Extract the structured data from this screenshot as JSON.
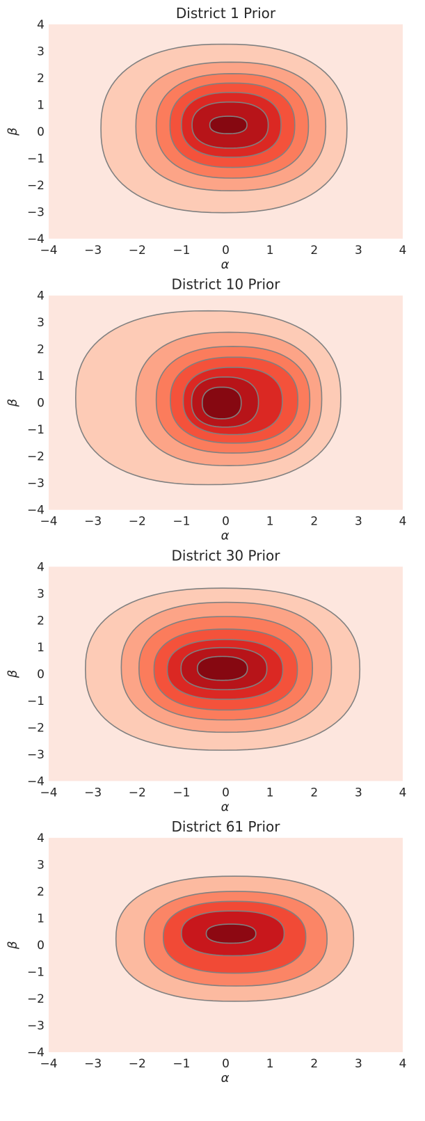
{
  "chart_data": [
    {
      "type": "contour",
      "title": "District 1 Prior",
      "xlabel": "α",
      "ylabel": "β",
      "xlim": [
        -4,
        4
      ],
      "ylim": [
        -4,
        4
      ],
      "grid": false,
      "xticks": [
        -4,
        -3,
        -2,
        -1,
        0,
        1,
        2,
        3,
        4
      ],
      "yticks": [
        -4,
        -3,
        -2,
        -1,
        0,
        1,
        2,
        3,
        4
      ],
      "xtick_labels": [
        "−4",
        "−3",
        "−2",
        "−1",
        "0",
        "1",
        "2",
        "3",
        "4"
      ],
      "ytick_labels": [
        "−4",
        "−3",
        "−2",
        "−1",
        "0",
        "1",
        "2",
        "3",
        "4"
      ],
      "fill_colors": [
        "#fde6de",
        "#fdcbb6",
        "#fca487",
        "#fb7c5c",
        "#f4523b",
        "#db2823",
        "#b71419",
        "#860811"
      ],
      "line_color": "#808080",
      "contours": [
        {
          "level": 1,
          "x_extent": [
            -2.82,
            2.74
          ],
          "y_extent": [
            -3.03,
            3.26
          ]
        },
        {
          "level": 2,
          "x_extent": [
            -2.03,
            2.26
          ],
          "y_extent": [
            -2.21,
            2.59
          ]
        },
        {
          "level": 3,
          "x_extent": [
            -1.57,
            1.87
          ],
          "y_extent": [
            -1.74,
            2.16
          ]
        },
        {
          "level": 4,
          "x_extent": [
            -1.26,
            1.56
          ],
          "y_extent": [
            -1.34,
            1.81
          ]
        },
        {
          "level": 5,
          "x_extent": [
            -1.0,
            1.25
          ],
          "y_extent": [
            -0.96,
            1.46
          ]
        },
        {
          "level": 6,
          "x_extent": [
            -0.76,
            0.96
          ],
          "y_extent": [
            -0.62,
            1.1
          ]
        },
        {
          "level": 7,
          "x_extent": [
            -0.36,
            0.48
          ],
          "y_extent": [
            -0.08,
            0.57
          ]
        }
      ]
    },
    {
      "type": "contour",
      "title": "District 10 Prior",
      "xlabel": "α",
      "ylabel": "β",
      "xlim": [
        -4,
        4
      ],
      "ylim": [
        -4,
        4
      ],
      "grid": false,
      "xticks": [
        -4,
        -3,
        -2,
        -1,
        0,
        1,
        2,
        3,
        4
      ],
      "yticks": [
        -4,
        -3,
        -2,
        -1,
        0,
        1,
        2,
        3,
        4
      ],
      "xtick_labels": [
        "−4",
        "−3",
        "−2",
        "−1",
        "0",
        "1",
        "2",
        "3",
        "4"
      ],
      "ytick_labels": [
        "−4",
        "−3",
        "−2",
        "−1",
        "0",
        "1",
        "2",
        "3",
        "4"
      ],
      "fill_colors": [
        "#fde6de",
        "#fdcbb6",
        "#fca487",
        "#fb7c5c",
        "#f4523b",
        "#db2823",
        "#b71419",
        "#860811"
      ],
      "line_color": "#808080",
      "contours": [
        {
          "level": 1,
          "x_extent": [
            -3.39,
            2.6
          ],
          "y_extent": [
            -3.06,
            3.43
          ]
        },
        {
          "level": 2,
          "x_extent": [
            -2.03,
            2.17
          ],
          "y_extent": [
            -2.35,
            2.63
          ]
        },
        {
          "level": 3,
          "x_extent": [
            -1.57,
            1.9
          ],
          "y_extent": [
            -1.88,
            2.1
          ]
        },
        {
          "level": 4,
          "x_extent": [
            -1.25,
            1.63
          ],
          "y_extent": [
            -1.51,
            1.7
          ]
        },
        {
          "level": 5,
          "x_extent": [
            -0.96,
            1.28
          ],
          "y_extent": [
            -1.19,
            1.32
          ]
        },
        {
          "level": 6,
          "x_extent": [
            -0.77,
            0.74
          ],
          "y_extent": [
            -0.91,
            0.96
          ]
        },
        {
          "level": 7,
          "x_extent": [
            -0.53,
            0.35
          ],
          "y_extent": [
            -0.6,
            0.58
          ]
        }
      ]
    },
    {
      "type": "contour",
      "title": "District 30 Prior",
      "xlabel": "α",
      "ylabel": "β",
      "xlim": [
        -4,
        4
      ],
      "ylim": [
        -4,
        4
      ],
      "grid": false,
      "xticks": [
        -4,
        -3,
        -2,
        -1,
        0,
        1,
        2,
        3,
        4
      ],
      "yticks": [
        -4,
        -3,
        -2,
        -1,
        0,
        1,
        2,
        3,
        4
      ],
      "xtick_labels": [
        "−4",
        "−3",
        "−2",
        "−1",
        "0",
        "1",
        "2",
        "3",
        "4"
      ],
      "ytick_labels": [
        "−4",
        "−3",
        "−2",
        "−1",
        "0",
        "1",
        "2",
        "3",
        "4"
      ],
      "fill_colors": [
        "#fde6de",
        "#fdcbb6",
        "#fca487",
        "#fb7c5c",
        "#f4523b",
        "#db2823",
        "#b71419",
        "#860811"
      ],
      "line_color": "#808080",
      "contours": [
        {
          "level": 1,
          "x_extent": [
            -3.17,
            3.03
          ],
          "y_extent": [
            -2.85,
            3.2
          ]
        },
        {
          "level": 2,
          "x_extent": [
            -2.36,
            2.39
          ],
          "y_extent": [
            -2.18,
            2.67
          ]
        },
        {
          "level": 3,
          "x_extent": [
            -1.96,
            1.96
          ],
          "y_extent": [
            -1.72,
            2.14
          ]
        },
        {
          "level": 4,
          "x_extent": [
            -1.62,
            1.62
          ],
          "y_extent": [
            -1.35,
            1.67
          ]
        },
        {
          "level": 5,
          "x_extent": [
            -1.32,
            1.29
          ],
          "y_extent": [
            -0.95,
            1.28
          ]
        },
        {
          "level": 6,
          "x_extent": [
            -1.01,
            0.93
          ],
          "y_extent": [
            -0.59,
            0.98
          ]
        },
        {
          "level": 7,
          "x_extent": [
            -0.64,
            0.49
          ],
          "y_extent": [
            -0.24,
            0.65
          ]
        }
      ]
    },
    {
      "type": "contour",
      "title": "District 61 Prior",
      "xlabel": "α",
      "ylabel": "β",
      "xlim": [
        -4,
        4
      ],
      "ylim": [
        -4,
        4
      ],
      "grid": false,
      "xticks": [
        -4,
        -3,
        -2,
        -1,
        0,
        1,
        2,
        3,
        4
      ],
      "yticks": [
        -4,
        -3,
        -2,
        -1,
        0,
        1,
        2,
        3,
        4
      ],
      "xtick_labels": [
        "−4",
        "−3",
        "−2",
        "−1",
        "0",
        "1",
        "2",
        "3",
        "4"
      ],
      "ytick_labels": [
        "−4",
        "−3",
        "−2",
        "−1",
        "0",
        "1",
        "2",
        "3",
        "4"
      ],
      "fill_colors": [
        "#fde6de",
        "#fcbaa0",
        "#fb8566",
        "#f14a36",
        "#c8171c",
        "#8d0812"
      ],
      "line_color": "#808080",
      "contours": [
        {
          "level": 1,
          "x_extent": [
            -2.48,
            2.89
          ],
          "y_extent": [
            -2.1,
            2.57
          ]
        },
        {
          "level": 2,
          "x_extent": [
            -1.84,
            2.29
          ],
          "y_extent": [
            -1.53,
            2.0
          ]
        },
        {
          "level": 3,
          "x_extent": [
            -1.41,
            1.81
          ],
          "y_extent": [
            -1.05,
            1.63
          ]
        },
        {
          "level": 4,
          "x_extent": [
            -1.0,
            1.32
          ],
          "y_extent": [
            -0.4,
            1.27
          ]
        },
        {
          "level": 5,
          "x_extent": [
            -0.44,
            0.68
          ],
          "y_extent": [
            0.07,
            0.78
          ]
        }
      ]
    }
  ]
}
